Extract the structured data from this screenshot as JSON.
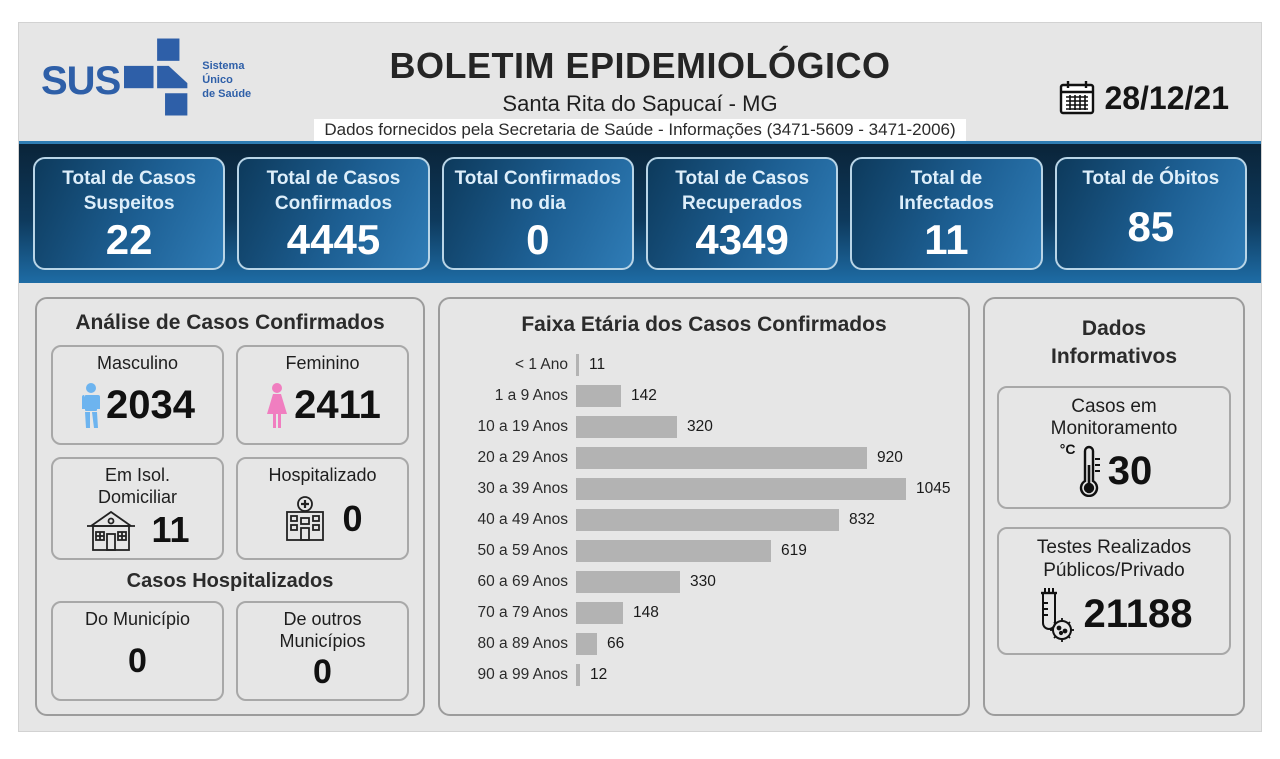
{
  "header": {
    "logo": {
      "text": "SUS",
      "tagline": "Sistema\nÚnico\nde Saúde"
    },
    "title": "BOLETIM EPIDEMIOLÓGICO",
    "subtitle": "Santa Rita do Sapucaí - MG",
    "info_line": "Dados fornecidos pela Secretaria de Saúde - Informações (3471-5609 - 3471-2006)",
    "date": "28/12/21"
  },
  "stats": {
    "cards": [
      {
        "label": "Total de Casos\nSuspeitos",
        "value": "22"
      },
      {
        "label": "Total de Casos\nConfirmados",
        "value": "4445"
      },
      {
        "label": "Total Confirmados\nno dia",
        "value": "0"
      },
      {
        "label": "Total de Casos\nRecuperados",
        "value": "4349"
      },
      {
        "label": "Total de\nInfectados",
        "value": "11"
      },
      {
        "label": "Total de Óbitos",
        "value": "85"
      }
    ]
  },
  "left_panel": {
    "title": "Análise de Casos Confirmados",
    "gender_cards": [
      {
        "label": "Masculino",
        "value": "2034",
        "icon": "male-icon",
        "color": "#6db4ef"
      },
      {
        "label": "Feminino",
        "value": "2411",
        "icon": "female-icon",
        "color": "#f07ec0"
      }
    ],
    "status_cards": [
      {
        "label": "Em Isol.\nDomiciliar",
        "value": "11",
        "icon": "house-icon"
      },
      {
        "label": "Hospitalizado",
        "value": "0",
        "icon": "hospital-icon"
      }
    ],
    "hospitalized_title": "Casos Hospitalizados",
    "hospitalized_cards": [
      {
        "label": "Do Município",
        "value": "0"
      },
      {
        "label": "De outros\nMunicípios",
        "value": "0"
      }
    ]
  },
  "chart_data": {
    "type": "bar",
    "orientation": "horizontal",
    "title": "Faixa Etária dos Casos Confirmados",
    "categories": [
      "< 1 Ano",
      "1 a 9 Anos",
      "10 a 19 Anos",
      "20 a 29 Anos",
      "30 a 39 Anos",
      "40 a 49 Anos",
      "50 a 59 Anos",
      "60 a 69 Anos",
      "70 a 79 Anos",
      "80 a 89 Anos",
      "90 a 99 Anos"
    ],
    "values": [
      11,
      142,
      320,
      920,
      1045,
      832,
      619,
      330,
      148,
      66,
      12
    ],
    "xlabel": "",
    "ylabel": "",
    "xlim": [
      0,
      1045
    ],
    "grid": false,
    "legend": false,
    "bar_color": "#b3b3b3",
    "data_labels": true
  },
  "right_panel": {
    "title": "Dados\nInformativos",
    "cards": [
      {
        "label": "Casos em\nMonitoramento",
        "value": "30",
        "icon": "thermometer-icon",
        "icon_label": "°C"
      },
      {
        "label": "Testes Realizados\nPúblicos/Privado",
        "value": "21188",
        "icon": "test-tube-icon"
      }
    ]
  },
  "colors": {
    "sus_blue": "#2e5fa8",
    "band_dark": "#0a2439",
    "band_light": "#1e6ca5",
    "stat_card_top": "#0d3a5c",
    "stat_card_bottom": "#2f7cb6",
    "stat_card_border": "#b9d5e7",
    "male_icon": "#6db4ef",
    "female_icon": "#f07ec0",
    "bar_gray": "#b3b3b3",
    "panel_bg": "#e6e6e6"
  }
}
